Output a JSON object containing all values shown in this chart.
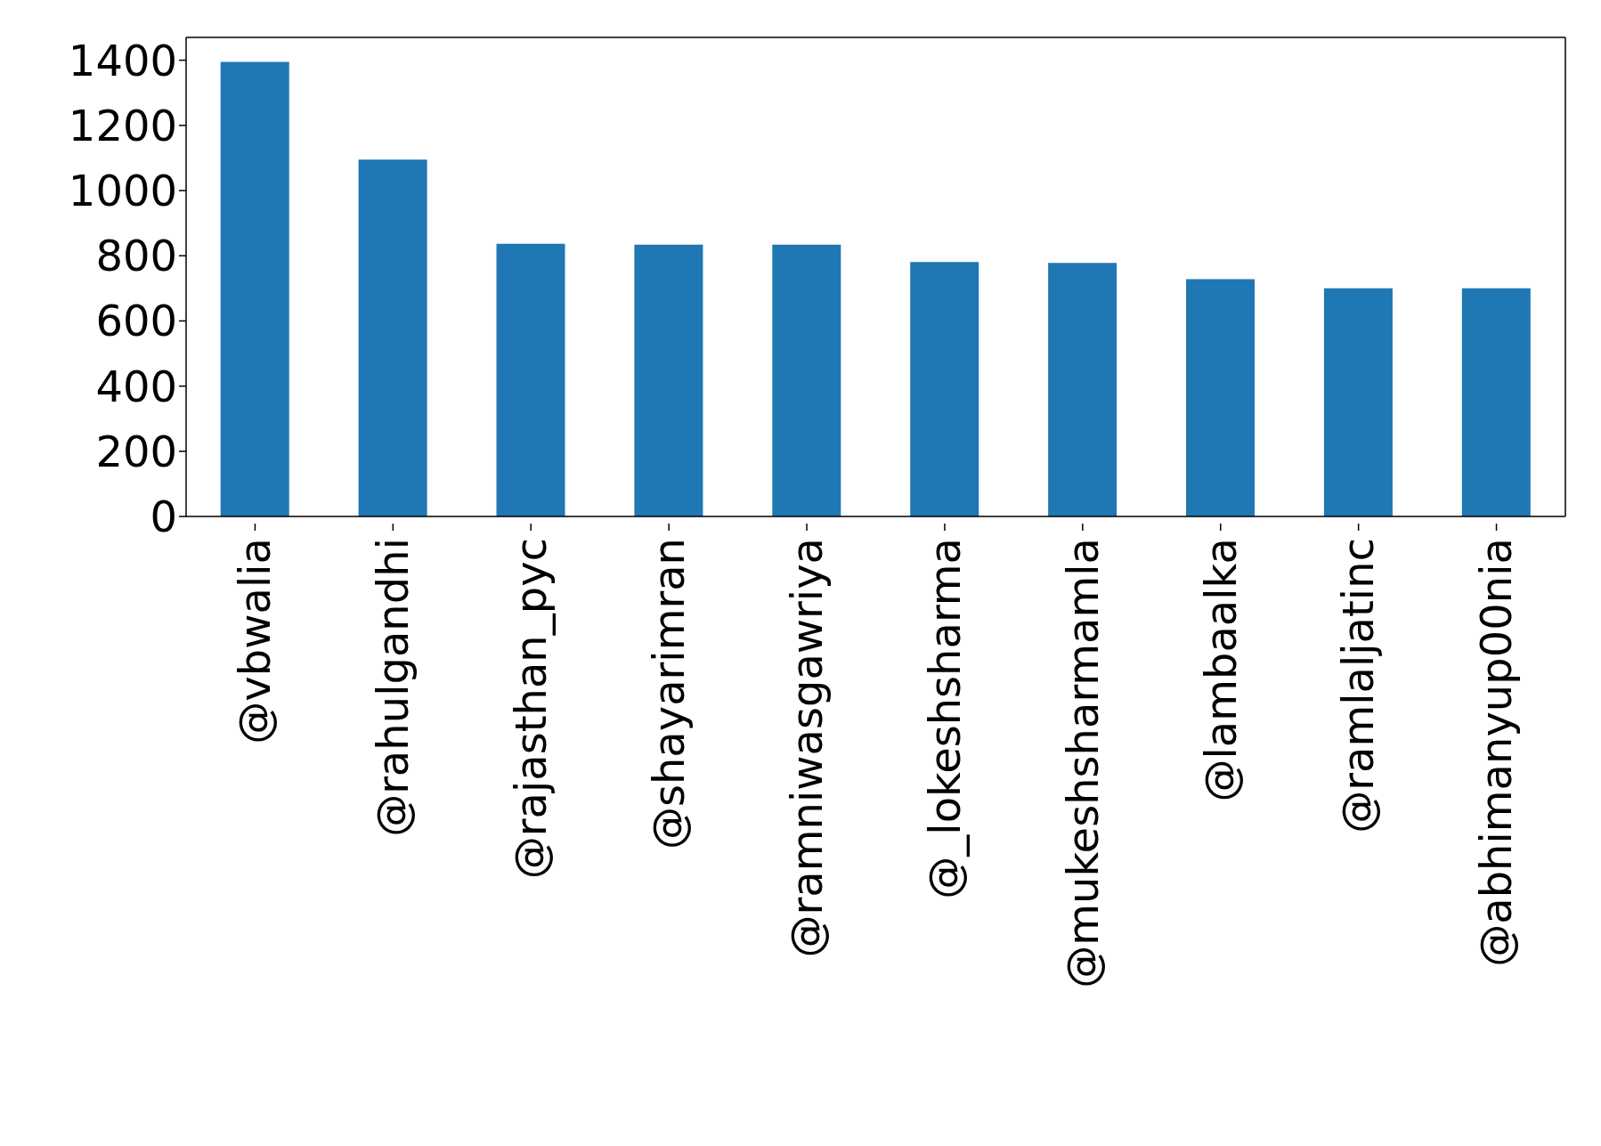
{
  "chart_data": {
    "type": "bar",
    "categories": [
      "@vbwalia",
      "@rahulgandhi",
      "@rajasthan_pyc",
      "@shayarimran",
      "@ramniwasgawriya",
      "@_lokeshsharma",
      "@mukeshsharmamla",
      "@lambaalka",
      "@ramlaljatinc",
      "@abhimanyup00nia"
    ],
    "values": [
      1395,
      1095,
      837,
      834,
      834,
      781,
      778,
      728,
      700,
      700
    ],
    "color": "#1f77b4",
    "ylim": [
      0,
      1470
    ],
    "yticks": [
      0,
      200,
      400,
      600,
      800,
      1000,
      1200,
      1400
    ],
    "grid": false,
    "legend": false
  }
}
